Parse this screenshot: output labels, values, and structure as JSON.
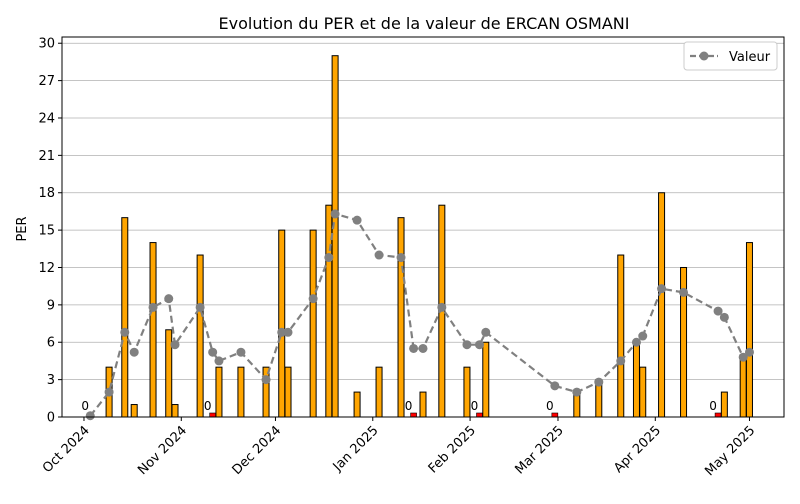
{
  "chart_data": {
    "type": "bar",
    "title": "Evolution du PER et de la valeur de ERCAN OSMANI",
    "xlabel": "",
    "ylabel": "PER",
    "ylim": [
      0,
      30.5
    ],
    "yticks": [
      0,
      3,
      6,
      9,
      12,
      15,
      18,
      21,
      24,
      27,
      30
    ],
    "xlim": [
      "2024-09-24",
      "2025-05-12"
    ],
    "xticks": [
      {
        "date": "2024-10-01",
        "label": "Oct 2024"
      },
      {
        "date": "2024-11-01",
        "label": "Nov 2024"
      },
      {
        "date": "2024-12-01",
        "label": "Dec 2024"
      },
      {
        "date": "2025-01-01",
        "label": "Jan 2025"
      },
      {
        "date": "2025-02-01",
        "label": "Feb 2025"
      },
      {
        "date": "2025-03-01",
        "label": "Mar 2025"
      },
      {
        "date": "2025-04-01",
        "label": "Apr 2025"
      },
      {
        "date": "2025-05-01",
        "label": "May 2025"
      }
    ],
    "grid": "y",
    "legend_position": "top-right",
    "colors": {
      "bar": "#ffa500",
      "bar_zero": "#ff0000",
      "line": "#808080",
      "grid": "#b0b0b0"
    },
    "bars": [
      {
        "x": "2024-10-03",
        "value": 0
      },
      {
        "x": "2024-10-09",
        "value": 4
      },
      {
        "x": "2024-10-14",
        "value": 16
      },
      {
        "x": "2024-10-17",
        "value": 1
      },
      {
        "x": "2024-10-23",
        "value": 14
      },
      {
        "x": "2024-10-28",
        "value": 7
      },
      {
        "x": "2024-10-30",
        "value": 1
      },
      {
        "x": "2024-11-07",
        "value": 13
      },
      {
        "x": "2024-11-11",
        "value": 0
      },
      {
        "x": "2024-11-13",
        "value": 4
      },
      {
        "x": "2024-11-20",
        "value": 4
      },
      {
        "x": "2024-11-28",
        "value": 4
      },
      {
        "x": "2024-12-03",
        "value": 15
      },
      {
        "x": "2024-12-05",
        "value": 4
      },
      {
        "x": "2024-12-13",
        "value": 15
      },
      {
        "x": "2024-12-18",
        "value": 17
      },
      {
        "x": "2024-12-20",
        "value": 29
      },
      {
        "x": "2024-12-27",
        "value": 2
      },
      {
        "x": "2025-01-03",
        "value": 4
      },
      {
        "x": "2025-01-10",
        "value": 16
      },
      {
        "x": "2025-01-14",
        "value": 0
      },
      {
        "x": "2025-01-17",
        "value": 2
      },
      {
        "x": "2025-01-23",
        "value": 17
      },
      {
        "x": "2025-01-31",
        "value": 4
      },
      {
        "x": "2025-02-04",
        "value": 0
      },
      {
        "x": "2025-02-06",
        "value": 6
      },
      {
        "x": "2025-02-28",
        "value": 0
      },
      {
        "x": "2025-03-07",
        "value": 2
      },
      {
        "x": "2025-03-14",
        "value": 3
      },
      {
        "x": "2025-03-21",
        "value": 13
      },
      {
        "x": "2025-03-26",
        "value": 6
      },
      {
        "x": "2025-03-28",
        "value": 4
      },
      {
        "x": "2025-04-03",
        "value": 18
      },
      {
        "x": "2025-04-10",
        "value": 12
      },
      {
        "x": "2025-04-21",
        "value": 0
      },
      {
        "x": "2025-04-23",
        "value": 2
      },
      {
        "x": "2025-04-29",
        "value": 5
      },
      {
        "x": "2025-05-01",
        "value": 14
      }
    ],
    "zero_label": "0",
    "series": [
      {
        "name": "Valeur",
        "type": "line",
        "points": [
          {
            "x": "2024-10-03",
            "y": 0.1
          },
          {
            "x": "2024-10-09",
            "y": 2.0
          },
          {
            "x": "2024-10-14",
            "y": 6.8
          },
          {
            "x": "2024-10-17",
            "y": 5.2
          },
          {
            "x": "2024-10-23",
            "y": 8.8
          },
          {
            "x": "2024-10-28",
            "y": 9.5
          },
          {
            "x": "2024-10-30",
            "y": 5.8
          },
          {
            "x": "2024-11-07",
            "y": 8.8
          },
          {
            "x": "2024-11-11",
            "y": 5.2
          },
          {
            "x": "2024-11-13",
            "y": 4.5
          },
          {
            "x": "2024-11-20",
            "y": 5.2
          },
          {
            "x": "2024-11-28",
            "y": 3.0
          },
          {
            "x": "2024-12-03",
            "y": 6.8
          },
          {
            "x": "2024-12-05",
            "y": 6.8
          },
          {
            "x": "2024-12-13",
            "y": 9.5
          },
          {
            "x": "2024-12-18",
            "y": 12.8
          },
          {
            "x": "2024-12-20",
            "y": 16.3
          },
          {
            "x": "2024-12-27",
            "y": 15.8
          },
          {
            "x": "2025-01-03",
            "y": 13.0
          },
          {
            "x": "2025-01-10",
            "y": 12.8
          },
          {
            "x": "2025-01-14",
            "y": 5.5
          },
          {
            "x": "2025-01-17",
            "y": 5.5
          },
          {
            "x": "2025-01-23",
            "y": 8.8
          },
          {
            "x": "2025-01-31",
            "y": 5.8
          },
          {
            "x": "2025-02-04",
            "y": 5.8
          },
          {
            "x": "2025-02-06",
            "y": 6.8
          },
          {
            "x": "2025-02-28",
            "y": 2.5
          },
          {
            "x": "2025-03-07",
            "y": 2.0
          },
          {
            "x": "2025-03-14",
            "y": 2.8
          },
          {
            "x": "2025-03-21",
            "y": 4.5
          },
          {
            "x": "2025-03-26",
            "y": 6.0
          },
          {
            "x": "2025-03-28",
            "y": 6.5
          },
          {
            "x": "2025-04-03",
            "y": 10.3
          },
          {
            "x": "2025-04-10",
            "y": 10.0
          },
          {
            "x": "2025-04-21",
            "y": 8.5
          },
          {
            "x": "2025-04-23",
            "y": 8.0
          },
          {
            "x": "2025-04-29",
            "y": 4.8
          },
          {
            "x": "2025-05-01",
            "y": 5.2
          }
        ]
      }
    ]
  }
}
